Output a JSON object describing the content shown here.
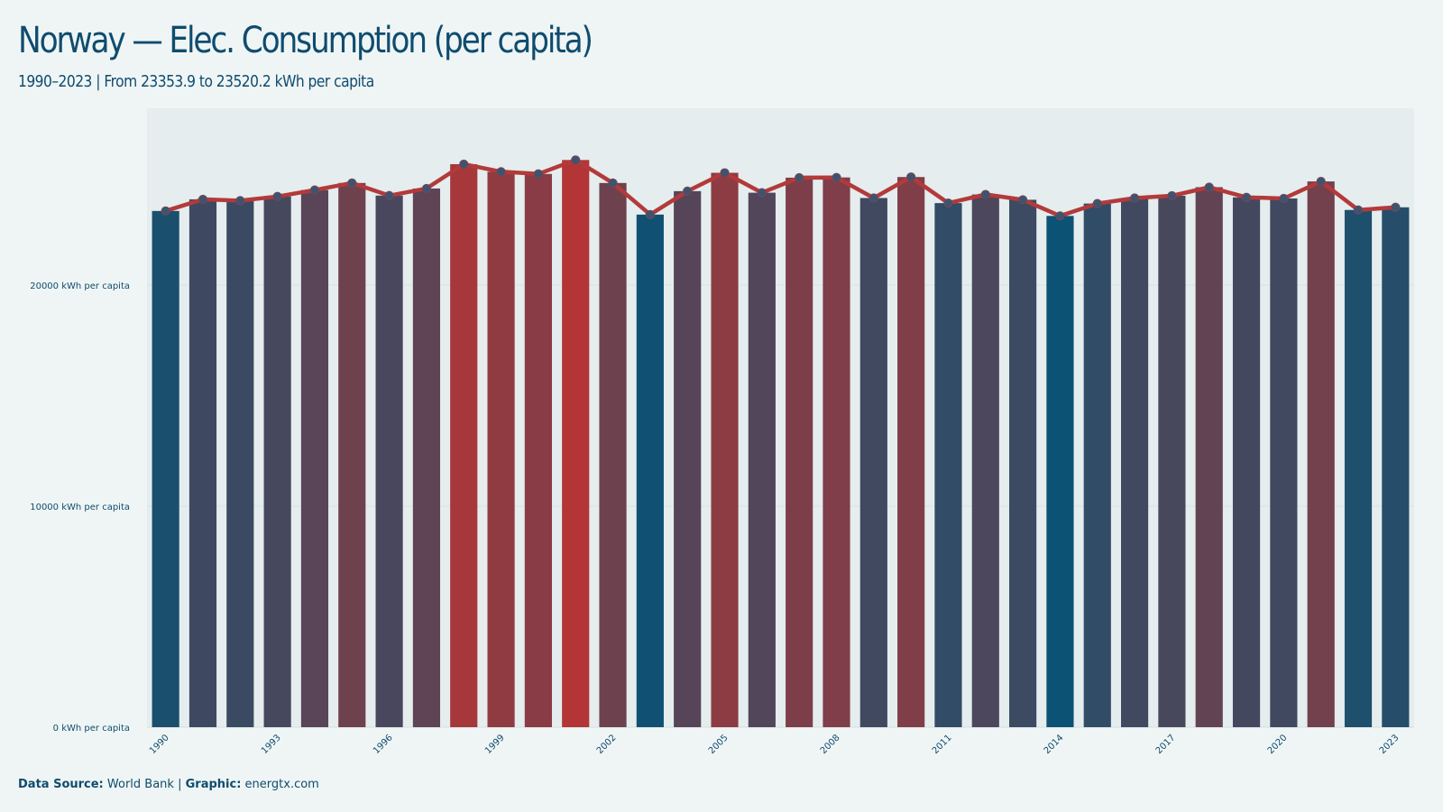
{
  "title": "Norway — Elec. Consumption (per capita)",
  "subtitle": "1990–2023 | From 23353.9 to 23520.2 kWh per capita",
  "footer": {
    "source_label": "Data Source:",
    "source_value": "World Bank",
    "separator": "|",
    "graphic_label": "Graphic:",
    "graphic_value": "energtx.com"
  },
  "colors": {
    "background": "#eff5f5",
    "text": "#0f4c6e",
    "line": "#b33a3a",
    "low": "#0c5274",
    "high": "#b33535",
    "grid": "#d5dde0"
  },
  "chart_data": {
    "type": "bar",
    "unit": "kWh per capita",
    "categories": [
      "1990",
      "1991",
      "1992",
      "1993",
      "1994",
      "1995",
      "1996",
      "1997",
      "1998",
      "1999",
      "2000",
      "2001",
      "2002",
      "2003",
      "2004",
      "2005",
      "2006",
      "2007",
      "2008",
      "2009",
      "2010",
      "2011",
      "2012",
      "2013",
      "2014",
      "2015",
      "2016",
      "2017",
      "2018",
      "2019",
      "2020",
      "2021",
      "2022",
      "2023"
    ],
    "values": [
      23353.9,
      23880,
      23820,
      24010,
      24300,
      24620,
      24050,
      24370,
      25470,
      25130,
      25030,
      25660,
      24620,
      23190,
      24250,
      25080,
      24180,
      24860,
      24870,
      23940,
      24890,
      23710,
      24100,
      23860,
      23130,
      23690,
      23940,
      24040,
      24430,
      23970,
      23920,
      24690,
      23400,
      23520.2
    ],
    "series": [
      {
        "type": "bar",
        "values": [
          23353.9,
          23880,
          23820,
          24010,
          24300,
          24620,
          24050,
          24370,
          25470,
          25130,
          25030,
          25660,
          24620,
          23190,
          24250,
          25080,
          24180,
          24860,
          24870,
          23940,
          24890,
          23710,
          24100,
          23860,
          23130,
          23690,
          23940,
          24040,
          24430,
          23970,
          23920,
          24690,
          23400,
          23520.2
        ]
      },
      {
        "type": "line",
        "values": [
          23353.9,
          23880,
          23820,
          24010,
          24300,
          24620,
          24050,
          24370,
          25470,
          25130,
          25030,
          25660,
          24620,
          23190,
          24250,
          25080,
          24180,
          24860,
          24870,
          23940,
          24890,
          23710,
          24100,
          23860,
          23130,
          23690,
          23940,
          24040,
          24430,
          23970,
          23920,
          24690,
          23400,
          23520.2
        ]
      }
    ],
    "x_tick_labels": [
      "1990",
      "1993",
      "1996",
      "1999",
      "2002",
      "2005",
      "2008",
      "2011",
      "2014",
      "2017",
      "2020",
      "2023"
    ],
    "y_ticks": [
      0,
      10000,
      20000
    ],
    "y_tick_labels": [
      "0 kWh per capita",
      "10000 kWh per capita",
      "20000 kWh per capita"
    ],
    "ylim": [
      0,
      28000
    ],
    "grid": true
  }
}
